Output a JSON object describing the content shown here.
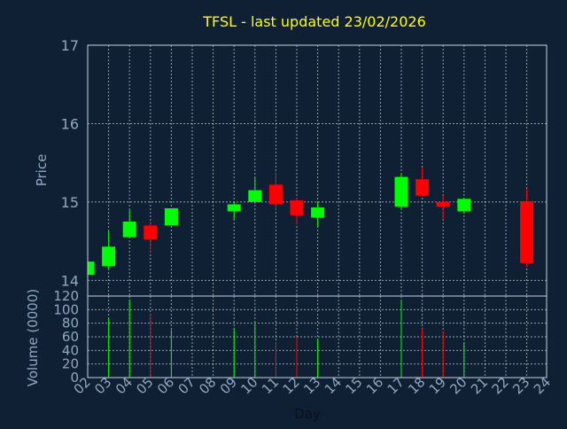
{
  "chart_data": {
    "type": "candlestick",
    "title": "TFSL - last updated 23/02/2026",
    "xlabel": "Day",
    "price_panel": {
      "ylabel": "Price",
      "ylim": [
        13.8,
        17.0
      ],
      "yticks": [
        14,
        15,
        16,
        17
      ]
    },
    "volume_panel": {
      "ylabel": "Volume (0000)",
      "ylim": [
        0,
        120
      ],
      "yticks": [
        0,
        20,
        40,
        60,
        80,
        100,
        120
      ]
    },
    "x_tick_labels": [
      "02",
      "03",
      "04",
      "05",
      "06",
      "07",
      "08",
      "09",
      "10",
      "11",
      "12",
      "13",
      "14",
      "15",
      "16",
      "17",
      "18",
      "19",
      "20",
      "21",
      "22",
      "23",
      "24"
    ],
    "grid": true,
    "colors": {
      "up": "#00ff00",
      "down": "#ff0000",
      "axis_text": "#8fa8c0",
      "title": "#ffff00",
      "background": "#0f2035"
    },
    "candles": [
      {
        "day": "02",
        "open": 14.07,
        "close": 14.24,
        "high": 14.24,
        "low": 14.07,
        "volume": 0
      },
      {
        "day": "03",
        "open": 14.18,
        "close": 14.43,
        "high": 14.63,
        "low": 14.14,
        "volume": 88
      },
      {
        "day": "04",
        "open": 14.55,
        "close": 14.75,
        "high": 14.9,
        "low": 14.55,
        "volume": 115
      },
      {
        "day": "05",
        "open": 14.7,
        "close": 14.52,
        "high": 14.75,
        "low": 14.36,
        "volume": 93
      },
      {
        "day": "06",
        "open": 14.7,
        "close": 14.92,
        "high": 14.92,
        "low": 14.7,
        "volume": 70
      },
      {
        "day": "09",
        "open": 14.88,
        "close": 14.97,
        "high": 15.0,
        "low": 14.78,
        "volume": 73
      },
      {
        "day": "10",
        "open": 15.0,
        "close": 15.15,
        "high": 15.32,
        "low": 14.98,
        "volume": 79
      },
      {
        "day": "11",
        "open": 15.22,
        "close": 14.97,
        "high": 15.37,
        "low": 14.9,
        "volume": 52
      },
      {
        "day": "12",
        "open": 15.02,
        "close": 14.83,
        "high": 15.05,
        "low": 14.72,
        "volume": 60
      },
      {
        "day": "13",
        "open": 14.8,
        "close": 14.93,
        "high": 15.0,
        "low": 14.68,
        "volume": 57
      },
      {
        "day": "17",
        "open": 14.94,
        "close": 15.32,
        "high": 15.37,
        "low": 14.9,
        "volume": 115
      },
      {
        "day": "18",
        "open": 15.29,
        "close": 15.08,
        "high": 15.44,
        "low": 15.08,
        "volume": 72
      },
      {
        "day": "19",
        "open": 15.0,
        "close": 14.94,
        "high": 15.08,
        "low": 14.78,
        "volume": 68
      },
      {
        "day": "20",
        "open": 14.88,
        "close": 15.04,
        "high": 15.04,
        "low": 14.85,
        "volume": 52
      },
      {
        "day": "23",
        "open": 15.01,
        "close": 14.22,
        "high": 15.17,
        "low": 14.17,
        "volume": 0
      }
    ]
  }
}
